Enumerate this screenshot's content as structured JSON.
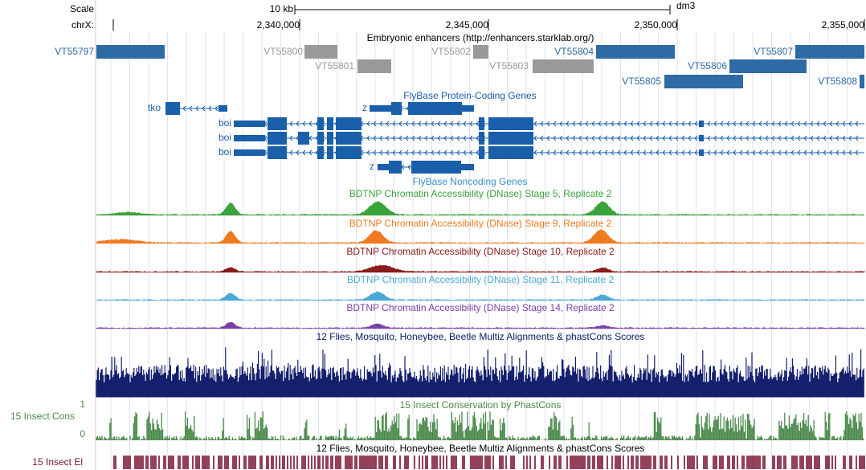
{
  "ruler": {
    "scale_label": "Scale",
    "scale_size": "10 kb",
    "assembly": "dm3",
    "chrom": "chrX:",
    "ticks": [
      "2,340,000",
      "2,345,000",
      "2,350,000",
      "2,355,000"
    ]
  },
  "enhancers": {
    "title": "Embryonic enhancers (http://enhancers.starklab.org/)",
    "items": [
      "VT55797",
      "VT55800",
      "VT55801",
      "VT55802",
      "VT55803",
      "VT55804",
      "VT55806",
      "VT55807",
      "VT55805",
      "VT55808"
    ]
  },
  "genes": {
    "title": "FlyBase Protein-Coding Genes",
    "items": [
      "tko",
      "z",
      "boi",
      "boi",
      "boi",
      "z"
    ]
  },
  "noncoding": {
    "title": "FlyBase Noncoding Genes"
  },
  "dnase": [
    "BDTNP Chromatin Accessibility (DNase) Stage 5, Replicate 2",
    "BDTNP Chromatin Accessibility (DNase) Stage 9, Replicate 2",
    "BDTNP Chromatin Accessibility (DNase) Stage 10, Replicate 2",
    "BDTNP Chromatin Accessibility (DNase) Stage 11, Replicate 2",
    "BDTNP Chromatin Accessibility (DNase) Stage 14, Replicate 2"
  ],
  "multiz": {
    "title": "12 Flies, Mosquito, Honeybee, Beetle Multiz Alignments & phastCons Scores"
  },
  "cons": {
    "title": "15 Insect Conservation by PhastCons",
    "label": "15 Insect Cons",
    "top": "1",
    "bottom": "0"
  },
  "elements": {
    "title": "12 Flies, Mosquito, Honeybee, Beetle Multiz Alignments & phastCons Scores",
    "label": "15 Insect El"
  }
}
